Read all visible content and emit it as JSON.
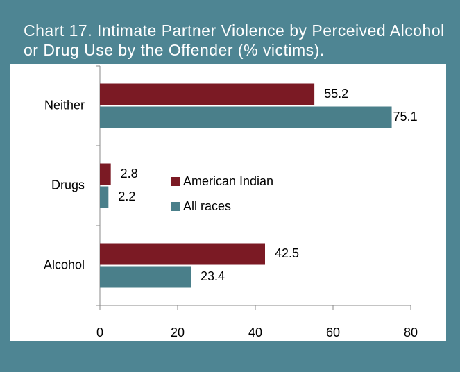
{
  "chart_data": {
    "type": "hbar",
    "title": "Chart 17. Intimate Partner Violence by Perceived Alcohol or Drug Use by the Offender (% victims).",
    "categories": [
      "Neither",
      "Drugs",
      "Alcohol"
    ],
    "series": [
      {
        "name": "American Indian",
        "color": "#7b1a24",
        "values": [
          55.2,
          2.8,
          42.5
        ]
      },
      {
        "name": "All races",
        "color": "#4a7f8a",
        "values": [
          75.1,
          2.2,
          23.4
        ]
      }
    ],
    "xlim": [
      0,
      80
    ],
    "xticks": [
      0,
      20,
      40,
      60,
      80
    ],
    "grid": false,
    "legend": "center"
  }
}
